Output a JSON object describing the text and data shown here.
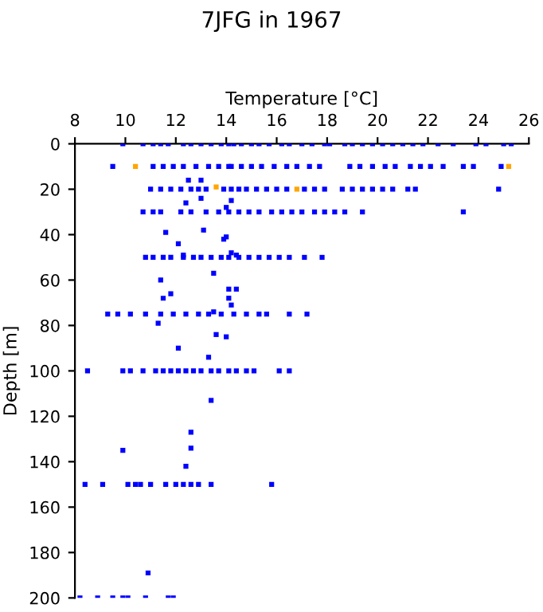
{
  "chart_data": {
    "type": "scatter",
    "title": "7JFG in 1967",
    "xlabel": "Temperature [°C]",
    "ylabel": "Depth [m]",
    "xlim": [
      8,
      26
    ],
    "xticks": [
      8,
      10,
      12,
      14,
      16,
      18,
      20,
      22,
      24,
      26
    ],
    "ylim": [
      200,
      0
    ],
    "yticks": [
      0,
      20,
      40,
      60,
      80,
      100,
      120,
      140,
      160,
      180,
      200
    ],
    "marker": "square",
    "grid": false,
    "legend": false,
    "series": [
      {
        "color": "#0000ff",
        "x": [
          9.9,
          10.7,
          11.1,
          11.4,
          11.7,
          12.3,
          12.6,
          13.0,
          13.4,
          13.8,
          14.1,
          14.3,
          14.6,
          15.0,
          15.3,
          15.7,
          16.2,
          16.5,
          17.0,
          17.4,
          17.9,
          18.1,
          18.7,
          19.0,
          19.4,
          19.8,
          20.2,
          20.6,
          21.0,
          21.4,
          21.8,
          22.4,
          23.0,
          23.9,
          24.3,
          25.0,
          25.3,
          9.5,
          11.1,
          11.5,
          11.9,
          12.3,
          12.8,
          13.3,
          13.7,
          14.1,
          14.2,
          14.6,
          15.0,
          15.4,
          15.9,
          16.4,
          16.8,
          17.3,
          17.7,
          18.9,
          19.3,
          19.8,
          20.3,
          20.7,
          21.3,
          21.7,
          22.1,
          22.6,
          23.4,
          23.8,
          24.9,
          11.0,
          11.4,
          11.8,
          12.2,
          12.6,
          12.9,
          13.2,
          13.9,
          14.2,
          14.5,
          14.8,
          15.2,
          15.6,
          16.0,
          16.4,
          17.1,
          17.5,
          17.9,
          18.6,
          19.0,
          19.4,
          19.8,
          20.2,
          20.6,
          21.2,
          21.5,
          24.8,
          12.5,
          13.0,
          12.4,
          13.0,
          14.2,
          14.0,
          10.7,
          11.1,
          11.4,
          12.2,
          12.6,
          13.2,
          13.7,
          14.1,
          14.5,
          14.9,
          15.3,
          15.8,
          16.2,
          16.6,
          17.0,
          17.5,
          17.9,
          18.3,
          18.7,
          19.4,
          23.4,
          11.6,
          13.1,
          12.1,
          13.9,
          14.0,
          14.2,
          14.4,
          12.3,
          10.8,
          11.1,
          11.5,
          11.8,
          12.3,
          12.7,
          13.0,
          13.4,
          13.8,
          14.1,
          14.5,
          14.9,
          15.3,
          15.7,
          16.1,
          16.5,
          17.1,
          17.8,
          13.5,
          11.4,
          11.8,
          14.1,
          14.4,
          14.1,
          14.2,
          11.5,
          9.3,
          9.7,
          10.2,
          10.8,
          11.4,
          11.9,
          12.4,
          12.9,
          13.3,
          13.8,
          14.3,
          14.8,
          15.3,
          15.6,
          16.5,
          17.2,
          13.5,
          11.3,
          13.6,
          14.0,
          12.1,
          13.3,
          8.5,
          9.9,
          10.2,
          10.7,
          11.2,
          11.5,
          11.8,
          12.1,
          12.4,
          12.7,
          13.0,
          13.4,
          13.7,
          14.1,
          14.4,
          14.8,
          15.1,
          16.1,
          16.5,
          13.4,
          12.6,
          12.6,
          12.4,
          9.9,
          8.4,
          9.1,
          10.1,
          10.4,
          10.6,
          11.0,
          11.6,
          12.0,
          12.3,
          12.6,
          12.9,
          13.4,
          15.8,
          10.9,
          8.2,
          8.9,
          9.5,
          9.9,
          10.1,
          10.8,
          11.7,
          11.9
        ],
        "values": [
          0,
          0,
          0,
          0,
          0,
          0,
          0,
          0,
          0,
          0,
          0,
          0,
          0,
          0,
          0,
          0,
          0,
          0,
          0,
          0,
          0,
          0,
          0,
          0,
          0,
          0,
          0,
          0,
          0,
          0,
          0,
          0,
          0,
          0,
          0,
          0,
          0,
          10,
          10,
          10,
          10,
          10,
          10,
          10,
          10,
          10,
          10,
          10,
          10,
          10,
          10,
          10,
          10,
          10,
          10,
          10,
          10,
          10,
          10,
          10,
          10,
          10,
          10,
          10,
          10,
          10,
          10,
          20,
          20,
          20,
          20,
          20,
          20,
          20,
          20,
          20,
          20,
          20,
          20,
          20,
          20,
          20,
          20,
          20,
          20,
          20,
          20,
          20,
          20,
          20,
          20,
          20,
          20,
          20,
          16,
          16,
          26,
          24,
          25,
          28,
          30,
          30,
          30,
          30,
          30,
          30,
          30,
          30,
          30,
          30,
          30,
          30,
          30,
          30,
          30,
          30,
          30,
          30,
          30,
          30,
          30,
          39,
          38,
          44,
          42,
          41,
          48,
          49,
          49,
          50,
          50,
          50,
          50,
          50,
          50,
          50,
          50,
          50,
          50,
          50,
          50,
          50,
          50,
          50,
          50,
          50,
          50,
          57,
          60,
          66,
          64,
          64,
          68,
          71,
          68,
          75,
          75,
          75,
          75,
          75,
          75,
          75,
          75,
          75,
          75,
          75,
          75,
          75,
          75,
          75,
          75,
          74,
          79,
          84,
          85,
          90,
          94,
          100,
          100,
          100,
          100,
          100,
          100,
          100,
          100,
          100,
          100,
          100,
          100,
          100,
          100,
          100,
          100,
          100,
          100,
          100,
          113,
          127,
          134,
          142,
          135,
          150,
          150,
          150,
          150,
          150,
          150,
          150,
          150,
          150,
          150,
          150,
          150,
          150,
          189,
          200,
          200,
          200,
          200,
          200,
          200,
          200,
          200
        ]
      },
      {
        "color": "#ffa500",
        "x": [
          10.4,
          25.2,
          13.6,
          16.8
        ],
        "values": [
          10,
          10,
          19,
          20
        ]
      }
    ]
  }
}
